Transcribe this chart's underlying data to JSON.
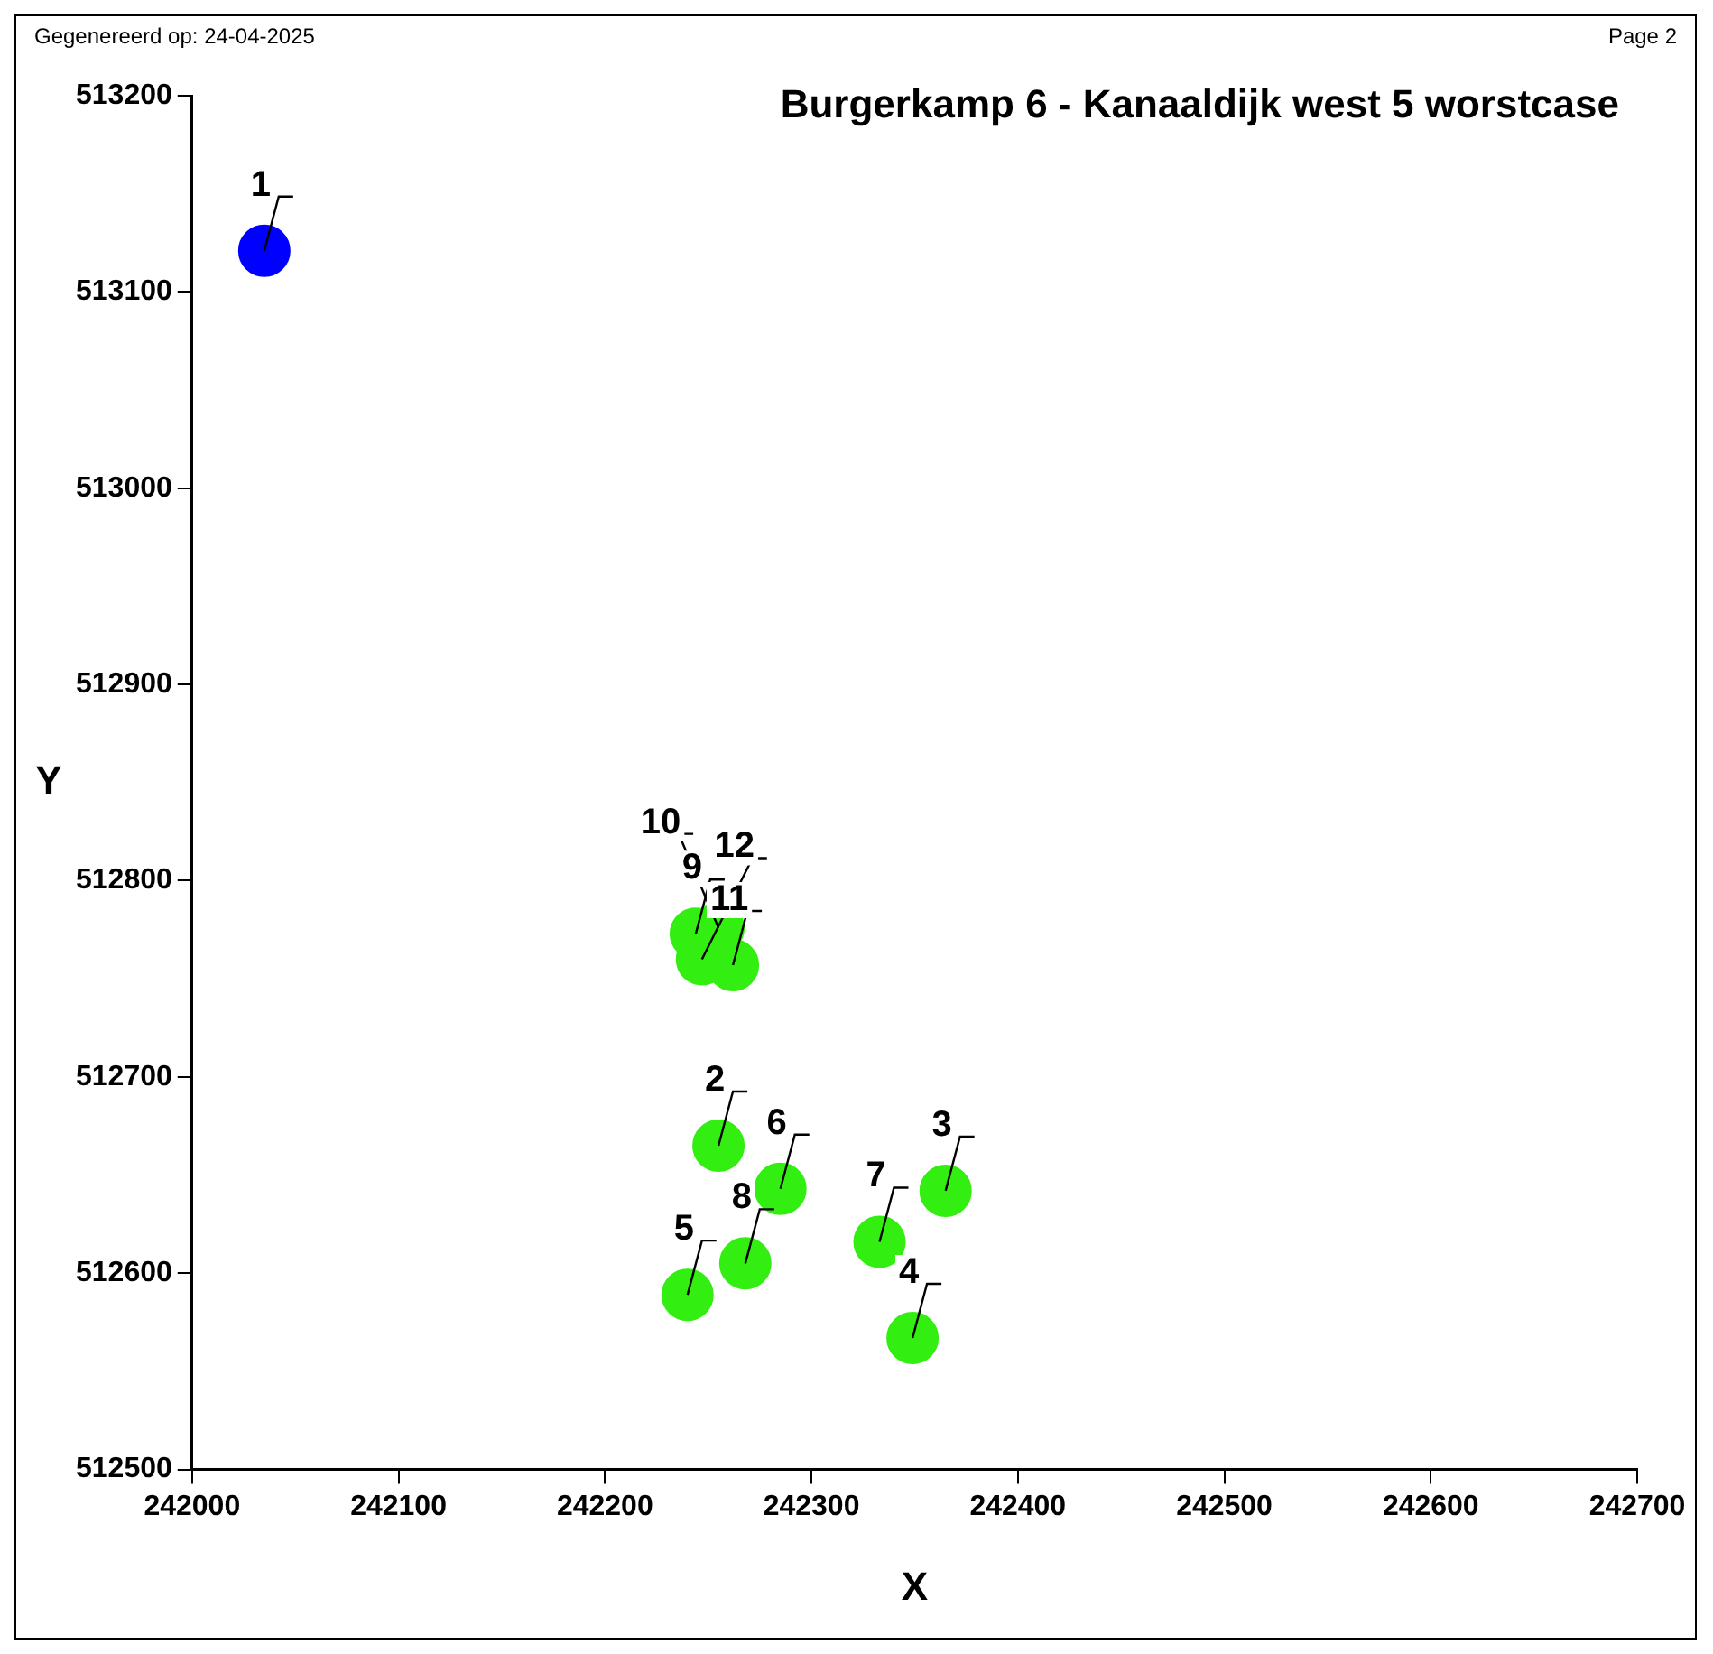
{
  "chart_data": {
    "type": "scatter",
    "title": "Burgerkamp 6 - Kanaaldijk west 5 worstcase",
    "xlabel": "X",
    "ylabel": "Y",
    "annotations": [
      "Gegenereerd op: 24-04-2025",
      "Page 2",
      {
        "text": "1",
        "x": 242035,
        "y": 513121
      },
      {
        "text": "2",
        "x": 242255,
        "y": 512665
      },
      {
        "text": "3",
        "x": 242365,
        "y": 512642
      },
      {
        "text": "4",
        "x": 242349,
        "y": 512567
      },
      {
        "text": "5",
        "x": 242240,
        "y": 512589
      },
      {
        "text": "6",
        "x": 242285,
        "y": 512643
      },
      {
        "text": "7",
        "x": 242333,
        "y": 512616
      },
      {
        "text": "8",
        "x": 242268,
        "y": 512605
      },
      {
        "text": "9",
        "x": 242244,
        "y": 512773
      },
      {
        "text": "10",
        "x": 242255,
        "y": 512776
      },
      {
        "text": "11",
        "x": 242262,
        "y": 512757
      },
      {
        "text": "12",
        "x": 242247,
        "y": 512760
      }
    ],
    "series": [
      {
        "color": "#0000ff",
        "x": [
          242035
        ],
        "values": [
          513121
        ]
      },
      {
        "color": "#33ee11",
        "x": [
          242255,
          242365,
          242349,
          242240,
          242285,
          242333,
          242268,
          242244,
          242255,
          242262,
          242247
        ],
        "values": [
          512665,
          512642,
          512567,
          512589,
          512643,
          512616,
          512605,
          512773,
          512776,
          512757,
          512760
        ]
      }
    ],
    "xlim": [
      242000,
      242700
    ],
    "xticks": [
      242000,
      242100,
      242200,
      242300,
      242400,
      242500,
      242600,
      242700
    ],
    "ylim": [
      512500,
      513200
    ],
    "yticks": [
      512500,
      512600,
      512700,
      512800,
      512900,
      513000,
      513100,
      513200
    ],
    "grid": false,
    "legend": false,
    "marker": "circle"
  }
}
